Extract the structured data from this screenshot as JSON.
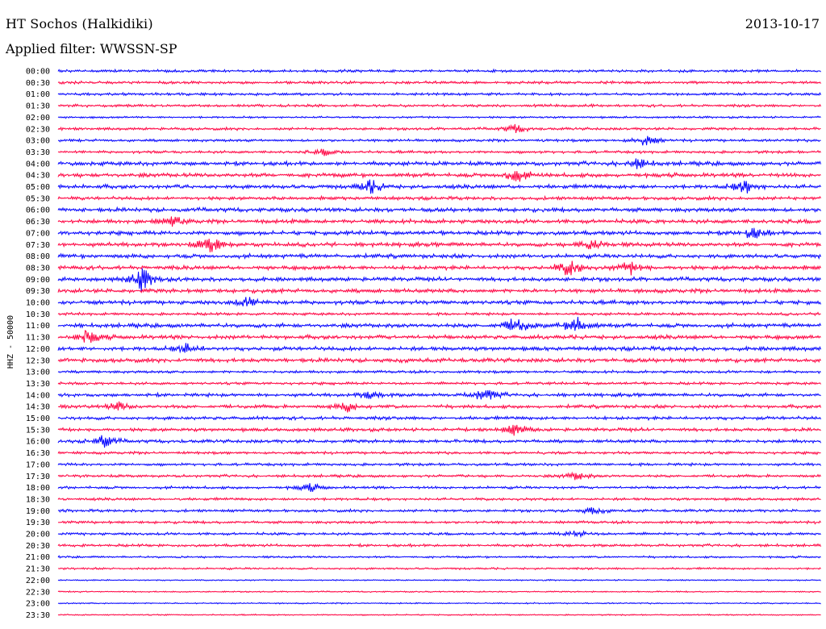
{
  "header": {
    "station": "HT Sochos (Halkidiki)",
    "date": "2013-10-17",
    "filter": "Applied filter: WWSSN-SP"
  },
  "chart_data": {
    "type": "line",
    "title": "HT Sochos (Halkidiki)",
    "ylabel": "HHZ - 50000",
    "xlabel": "",
    "colors": {
      "even_hour": "#0000ff",
      "half_hour": "#ff0040"
    },
    "rows": [
      "00:00",
      "00:30",
      "01:00",
      "01:30",
      "02:00",
      "02:30",
      "03:00",
      "03:30",
      "04:00",
      "04:30",
      "05:00",
      "05:30",
      "06:00",
      "06:30",
      "07:00",
      "07:30",
      "08:00",
      "08:30",
      "09:00",
      "09:30",
      "10:00",
      "10:30",
      "11:00",
      "11:30",
      "12:00",
      "12:30",
      "13:00",
      "13:30",
      "14:00",
      "14:30",
      "15:00",
      "15:30",
      "16:00",
      "16:30",
      "17:00",
      "17:30",
      "18:00",
      "18:30",
      "19:00",
      "19:30",
      "20:00",
      "20:30",
      "21:00",
      "21:30",
      "22:00",
      "22:30",
      "23:00",
      "23:30"
    ],
    "noise_level": [
      2,
      2,
      2,
      2,
      1.5,
      2,
      2,
      2,
      3,
      3,
      3,
      2.5,
      3,
      3,
      3,
      3,
      3,
      3,
      3,
      3,
      3,
      2,
      3,
      3,
      3,
      3,
      2,
      2,
      2.5,
      2.5,
      2.5,
      2.5,
      2.5,
      2,
      2,
      2,
      2,
      2,
      2,
      2,
      2,
      2,
      1.5,
      1.5,
      1,
      1,
      1,
      1
    ],
    "events": [
      {
        "row": "02:30",
        "x": 0.6,
        "amp": 5
      },
      {
        "row": "03:00",
        "x": 0.77,
        "amp": 7
      },
      {
        "row": "03:30",
        "x": 0.35,
        "amp": 4
      },
      {
        "row": "04:00",
        "x": 0.76,
        "amp": 6
      },
      {
        "row": "04:30",
        "x": 0.6,
        "amp": 9
      },
      {
        "row": "05:00",
        "x": 0.41,
        "amp": 8
      },
      {
        "row": "05:00",
        "x": 0.9,
        "amp": 8
      },
      {
        "row": "06:30",
        "x": 0.15,
        "amp": 6
      },
      {
        "row": "07:00",
        "x": 0.91,
        "amp": 7
      },
      {
        "row": "07:30",
        "x": 0.2,
        "amp": 10
      },
      {
        "row": "07:30",
        "x": 0.7,
        "amp": 7
      },
      {
        "row": "08:30",
        "x": 0.67,
        "amp": 11
      },
      {
        "row": "08:30",
        "x": 0.75,
        "amp": 8
      },
      {
        "row": "09:00",
        "x": 0.11,
        "amp": 14
      },
      {
        "row": "10:00",
        "x": 0.25,
        "amp": 6
      },
      {
        "row": "11:00",
        "x": 0.6,
        "amp": 11
      },
      {
        "row": "11:00",
        "x": 0.68,
        "amp": 10
      },
      {
        "row": "11:30",
        "x": 0.04,
        "amp": 8
      },
      {
        "row": "12:00",
        "x": 0.17,
        "amp": 6
      },
      {
        "row": "14:00",
        "x": 0.41,
        "amp": 5
      },
      {
        "row": "14:00",
        "x": 0.56,
        "amp": 9
      },
      {
        "row": "14:30",
        "x": 0.08,
        "amp": 5
      },
      {
        "row": "14:30",
        "x": 0.38,
        "amp": 6
      },
      {
        "row": "15:30",
        "x": 0.6,
        "amp": 7
      },
      {
        "row": "16:00",
        "x": 0.06,
        "amp": 8
      },
      {
        "row": "17:30",
        "x": 0.68,
        "amp": 5
      },
      {
        "row": "18:00",
        "x": 0.33,
        "amp": 5
      },
      {
        "row": "19:00",
        "x": 0.7,
        "amp": 4
      },
      {
        "row": "20:00",
        "x": 0.68,
        "amp": 4
      }
    ]
  }
}
